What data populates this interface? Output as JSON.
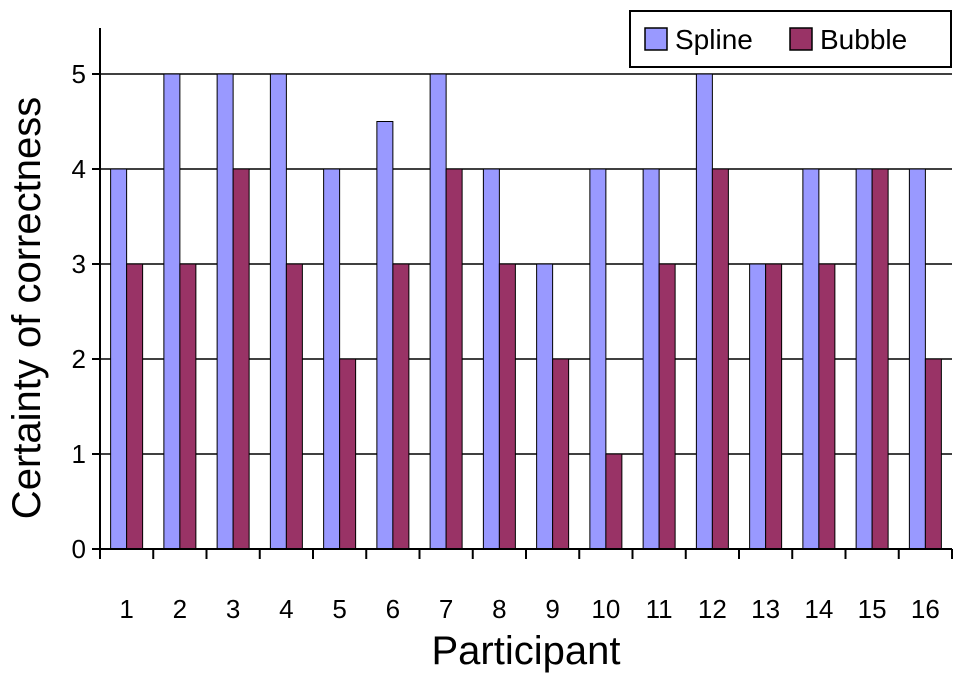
{
  "chart_data": {
    "type": "bar",
    "title": "",
    "xlabel": "Participant",
    "ylabel": "Certainty of correctness",
    "ylim": [
      0,
      5
    ],
    "yticks": [
      0,
      1,
      2,
      3,
      4,
      5
    ],
    "grid": true,
    "legend_position": "top-right",
    "categories": [
      "1",
      "2",
      "3",
      "4",
      "5",
      "6",
      "7",
      "8",
      "9",
      "10",
      "11",
      "12",
      "13",
      "14",
      "15",
      "16"
    ],
    "series": [
      {
        "name": "Spline",
        "color": "#9999ff",
        "values": [
          4,
          5,
          5,
          5,
          4,
          4.5,
          5,
          4,
          3,
          4,
          4,
          5,
          3,
          4,
          4,
          4
        ]
      },
      {
        "name": "Bubble",
        "color": "#993366",
        "values": [
          3,
          3,
          4,
          3,
          2,
          3,
          4,
          3,
          2,
          1,
          3,
          4,
          3,
          3,
          4,
          2
        ]
      }
    ]
  }
}
